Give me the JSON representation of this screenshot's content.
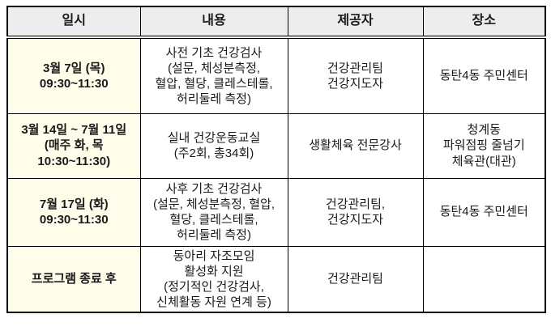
{
  "colors": {
    "header_bg": "#ededed",
    "date_col_bg": "#fffcea",
    "border_color": "#000000",
    "text_color": "#1a1a1a",
    "page_bg": "#ffffff"
  },
  "table": {
    "headers": {
      "date": "일시",
      "content": "내용",
      "provider": "제공자",
      "location": "장소"
    },
    "rows": [
      {
        "date": [
          "3월 7일 (목)",
          "09:30~11:30"
        ],
        "content": [
          "사전 기초 건강검사",
          "(설문, 체성분측정,",
          "혈압, 혈당, 클레스테롤,",
          "허리둘레 측정)"
        ],
        "provider": [
          "건강관리팀",
          "건강지도자"
        ],
        "location": [
          "동탄4동 주민센터"
        ]
      },
      {
        "date": [
          "3월 14일 ~ 7월 11일",
          "(매주 화, 목",
          "10:30~11:30)"
        ],
        "content": [
          "실내 건강운동교실",
          "(주2회, 총34회)"
        ],
        "provider": [
          "생활체육 전문강사"
        ],
        "location": [
          "청계동",
          "파워점핑 줄넘기",
          "체육관(대관)"
        ]
      },
      {
        "date": [
          "7월 17일 (화)",
          "09:30~11:30"
        ],
        "content": [
          "사후 기초 건강검사",
          "(설문, 체성분측정, 혈압,",
          "혈당, 클레스테롤,",
          "허리둘레 측정)"
        ],
        "provider": [
          "건강관리팀,",
          "건강지도자"
        ],
        "location": [
          "동탄4동 주민센터"
        ]
      },
      {
        "date": [
          "프로그램 종료 후"
        ],
        "content": [
          "동아리 자조모임",
          "활성화 지원",
          "(정기적인 건강검사,",
          "신체활동 자원 연계 등)"
        ],
        "provider": [
          "건강관리팀"
        ],
        "location": []
      }
    ]
  }
}
